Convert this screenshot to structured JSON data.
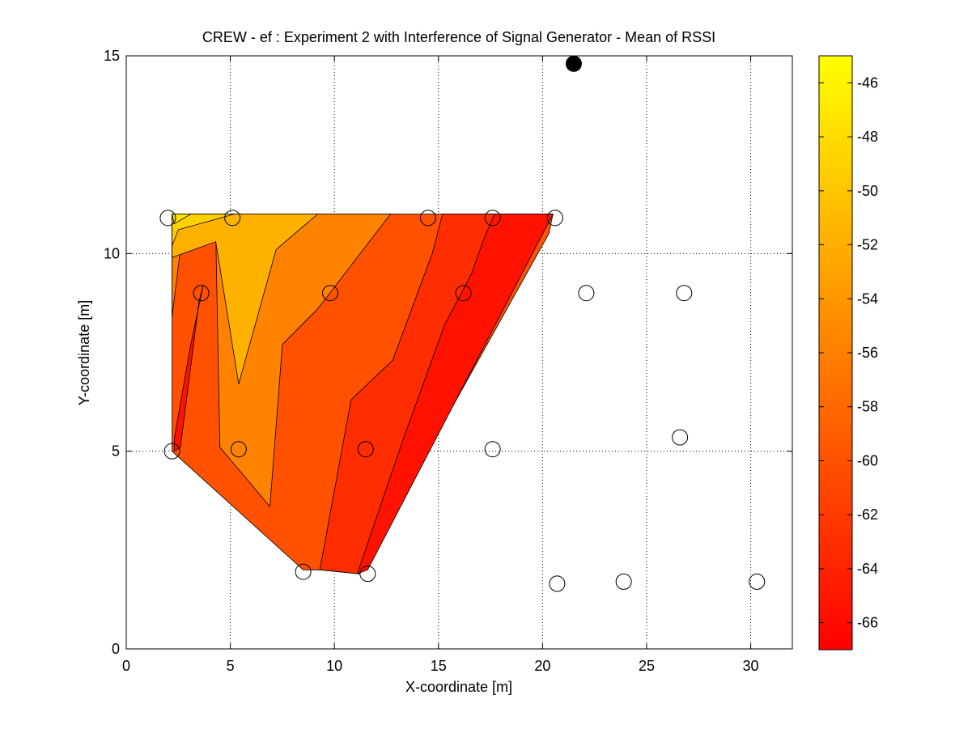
{
  "chart_data": {
    "type": "contour",
    "title": "CREW - ef : Experiment 2 with Interference of Signal Generator - Mean of RSSI",
    "xlabel": "X-coordinate [m]",
    "ylabel": "Y-coordinate [m]",
    "xlim": [
      0,
      32
    ],
    "ylim": [
      0,
      15
    ],
    "x_ticks": [
      0,
      5,
      10,
      15,
      20,
      25,
      30
    ],
    "y_ticks": [
      0,
      5,
      10,
      15
    ],
    "x_tick_labels": [
      "0",
      "5",
      "10",
      "15",
      "20",
      "25",
      "30"
    ],
    "y_tick_labels": [
      "0",
      "5",
      "10",
      "15"
    ],
    "grid": true,
    "colormap": "autumn",
    "colormap_stops": [
      "#ff0000",
      "#ffff00"
    ],
    "colorbar": {
      "location": "right",
      "range": [
        -67,
        -45
      ],
      "ticks": [
        -46,
        -48,
        -50,
        -52,
        -54,
        -56,
        -58,
        -60,
        -62,
        -64,
        -66
      ],
      "tick_labels": [
        "-46",
        "-48",
        "-50",
        "-52",
        "-54",
        "-56",
        "-58",
        "-60",
        "-62",
        "-64",
        "-66"
      ]
    },
    "contour_regions": [
      {
        "level": -57,
        "color": "#ff5100",
        "polygon": [
          [
            2.2,
            11
          ],
          [
            20.5,
            11
          ],
          [
            20.3,
            10.5
          ],
          [
            11.2,
            1.9
          ],
          [
            9.3,
            2
          ],
          [
            8.5,
            2
          ],
          [
            2.2,
            5
          ]
        ]
      },
      {
        "level": -55,
        "color": "#ff8200",
        "polygon": [
          [
            2.2,
            11
          ],
          [
            12.7,
            11
          ],
          [
            9.2,
            8.6
          ],
          [
            7.5,
            7.7
          ],
          [
            6.9,
            3.6
          ],
          [
            4.5,
            5.1
          ],
          [
            4.3,
            10.5
          ],
          [
            2.6,
            10.1
          ],
          [
            2.2,
            8.4
          ]
        ]
      },
      {
        "level": -53,
        "color": "#ffb100",
        "polygon": [
          [
            2.2,
            11
          ],
          [
            9.2,
            11
          ],
          [
            7.2,
            10.1
          ],
          [
            5.4,
            6.7
          ],
          [
            4.3,
            10.3
          ],
          [
            2.2,
            9.9
          ]
        ]
      },
      {
        "level": -51,
        "color": "#ffd000",
        "polygon": [
          [
            2.2,
            11
          ],
          [
            5.2,
            11
          ],
          [
            2.5,
            10.6
          ],
          [
            2.2,
            10.2
          ]
        ]
      },
      {
        "level": -49,
        "color": "#ffe400",
        "polygon": [
          [
            2.2,
            11
          ],
          [
            3.1,
            11
          ],
          [
            2.3,
            10.75
          ]
        ]
      },
      {
        "level": -61,
        "color": "#ff2d00",
        "polygon": [
          [
            15.2,
            11
          ],
          [
            20.5,
            11
          ],
          [
            11.2,
            1.9
          ],
          [
            9.3,
            2
          ],
          [
            10.8,
            6.3
          ],
          [
            12.8,
            7.3
          ],
          [
            14.7,
            10
          ]
        ]
      },
      {
        "level": -65,
        "color": "#ff1200",
        "polygon": [
          [
            17.7,
            11
          ],
          [
            20.5,
            11
          ],
          [
            11.6,
            2
          ],
          [
            11.1,
            1.9
          ],
          [
            13.3,
            5.3
          ],
          [
            15.3,
            8.2
          ],
          [
            16.6,
            9.5
          ],
          [
            17.2,
            10.4
          ]
        ]
      },
      {
        "level": -65,
        "color": "#ff1200",
        "polygon": [
          [
            2.3,
            5
          ],
          [
            2.6,
            5.1
          ],
          [
            3.5,
            8.8
          ],
          [
            3.7,
            9.2
          ],
          [
            3.1,
            7.7
          ],
          [
            2.3,
            5.3
          ]
        ]
      }
    ],
    "sensor_nodes": {
      "x": [
        2.0,
        5.1,
        14.5,
        17.6,
        20.6,
        3.6,
        9.8,
        16.2,
        22.1,
        26.8,
        2.2,
        5.4,
        11.5,
        17.6,
        26.6,
        8.5,
        11.6,
        20.7,
        23.9,
        30.3
      ],
      "y": [
        10.9,
        10.9,
        10.9,
        10.9,
        10.9,
        9.0,
        9.0,
        9.0,
        9.0,
        9.0,
        5.0,
        5.05,
        5.05,
        5.05,
        5.35,
        1.95,
        1.9,
        1.65,
        1.7,
        1.7
      ]
    },
    "interferer": {
      "x": 21.5,
      "y": 14.8
    }
  }
}
